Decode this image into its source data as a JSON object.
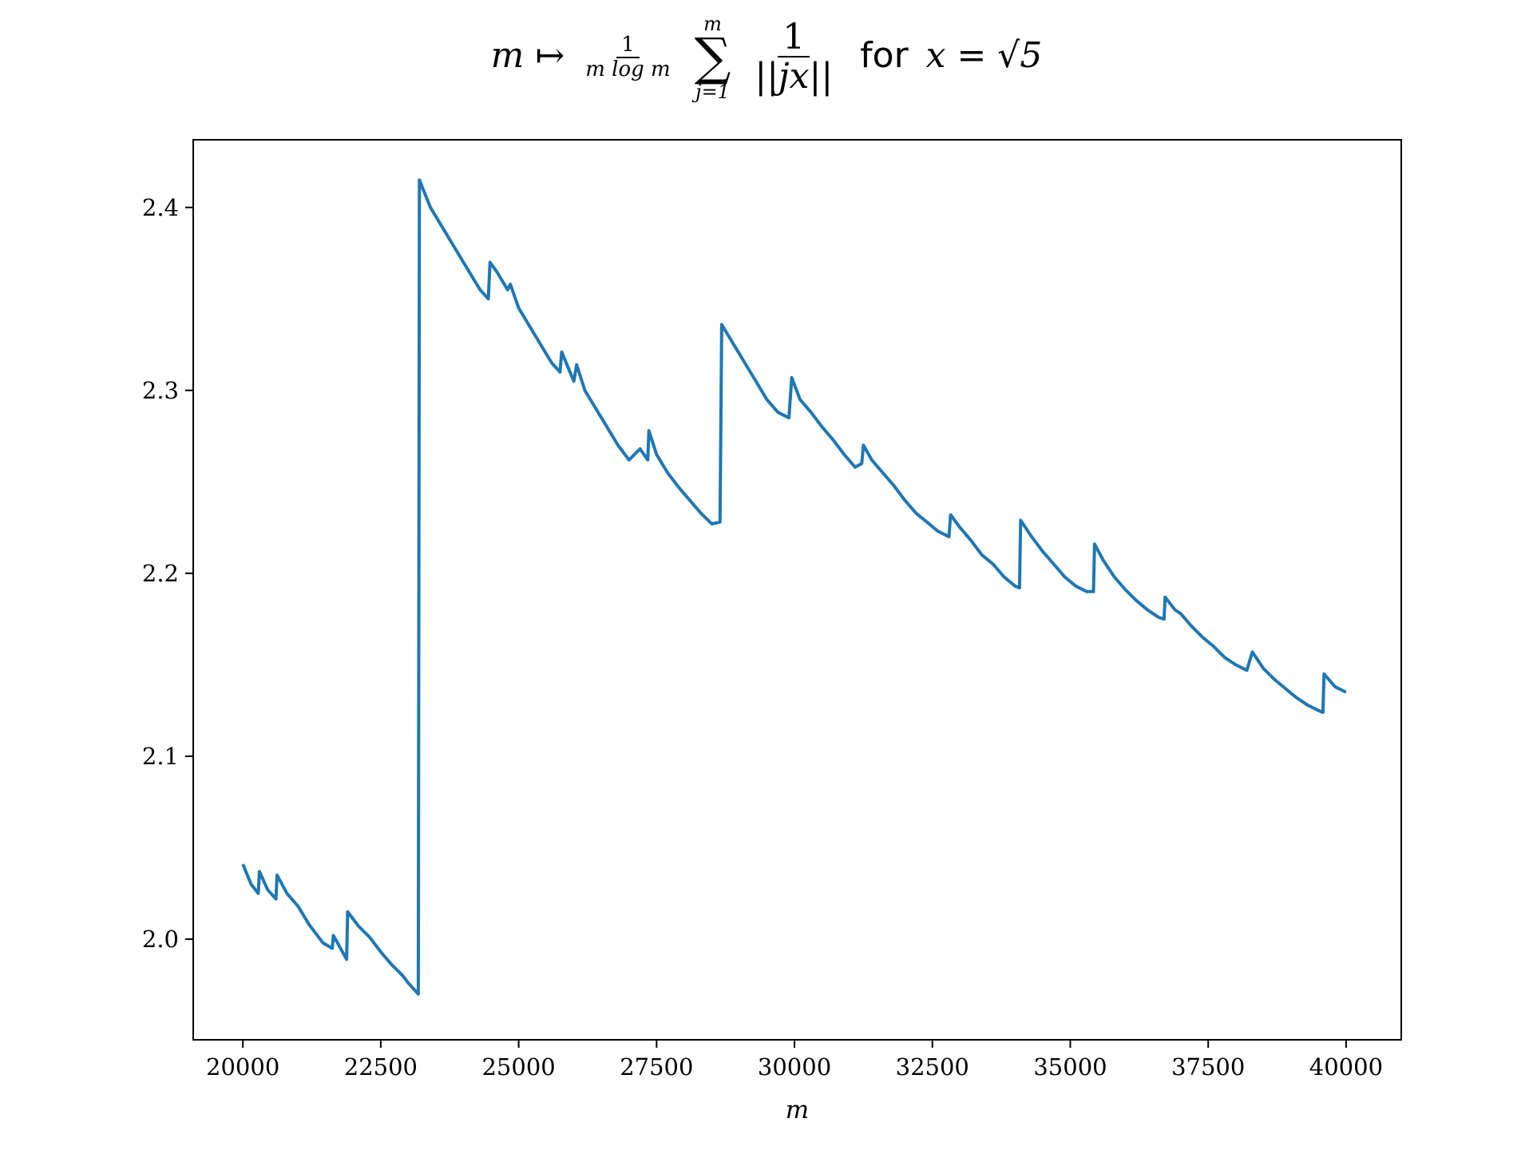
{
  "chart_data": {
    "type": "line",
    "title": {
      "map_var": "m",
      "map_arrow": "↦",
      "prefactor_num": "1",
      "prefactor_den": "m log m",
      "sum_upper": "m",
      "sum_symbol": "∑",
      "sum_lower": "j=1",
      "term_num": "1",
      "term_den": "||jx||",
      "for_word": "for",
      "condition": "x = √5"
    },
    "xlabel": "m",
    "ylabel": "",
    "xlim": [
      19100,
      41000
    ],
    "ylim": [
      1.945,
      2.437
    ],
    "x_ticks": [
      20000,
      22500,
      25000,
      27500,
      30000,
      32500,
      35000,
      37500,
      40000
    ],
    "x_tick_labels": [
      "20000",
      "22500",
      "25000",
      "27500",
      "30000",
      "32500",
      "35000",
      "37500",
      "40000"
    ],
    "y_ticks": [
      2.0,
      2.1,
      2.2,
      2.3,
      2.4
    ],
    "y_tick_labels": [
      "2.0",
      "2.1",
      "2.2",
      "2.3",
      "2.4"
    ],
    "grid": false,
    "legend": "none",
    "series": [
      {
        "color": "#1f77b4",
        "x": [
          20000,
          20150,
          20280,
          20300,
          20450,
          20600,
          20620,
          20800,
          21000,
          21200,
          21450,
          21620,
          21640,
          21880,
          21900,
          22100,
          22300,
          22500,
          22700,
          22900,
          23000,
          23180,
          23200,
          23400,
          23600,
          23800,
          24000,
          24200,
          24300,
          24450,
          24480,
          24600,
          24800,
          24850,
          25000,
          25200,
          25400,
          25600,
          25750,
          25780,
          26000,
          26050,
          26200,
          26400,
          26600,
          26800,
          27000,
          27200,
          27340,
          27360,
          27500,
          27700,
          27900,
          28100,
          28300,
          28500,
          28650,
          28680,
          28900,
          29100,
          29300,
          29500,
          29700,
          29900,
          29950,
          30100,
          30300,
          30500,
          30700,
          30900,
          31100,
          31220,
          31250,
          31400,
          31600,
          31800,
          32000,
          32200,
          32400,
          32600,
          32800,
          32830,
          33000,
          33200,
          33400,
          33600,
          33800,
          34000,
          34080,
          34100,
          34300,
          34500,
          34700,
          34900,
          35100,
          35300,
          35420,
          35440,
          35600,
          35800,
          36000,
          36200,
          36400,
          36600,
          36700,
          36720,
          36900,
          37000,
          37200,
          37400,
          37600,
          37800,
          38000,
          38200,
          38300,
          38500,
          38700,
          38900,
          39100,
          39300,
          39500,
          39580,
          39600,
          39800,
          40000
        ],
        "y": [
          2.041,
          2.03,
          2.025,
          2.037,
          2.027,
          2.022,
          2.035,
          2.025,
          2.018,
          2.008,
          1.998,
          1.995,
          2.002,
          1.989,
          2.015,
          2.007,
          2.001,
          1.993,
          1.986,
          1.98,
          1.976,
          1.97,
          2.415,
          2.4,
          2.39,
          2.38,
          2.37,
          2.36,
          2.355,
          2.35,
          2.37,
          2.365,
          2.355,
          2.358,
          2.345,
          2.335,
          2.325,
          2.315,
          2.31,
          2.321,
          2.305,
          2.314,
          2.3,
          2.29,
          2.28,
          2.27,
          2.262,
          2.268,
          2.262,
          2.278,
          2.265,
          2.255,
          2.247,
          2.24,
          2.233,
          2.227,
          2.228,
          2.336,
          2.325,
          2.315,
          2.305,
          2.295,
          2.288,
          2.285,
          2.307,
          2.295,
          2.288,
          2.28,
          2.273,
          2.265,
          2.258,
          2.26,
          2.27,
          2.262,
          2.255,
          2.248,
          2.24,
          2.233,
          2.228,
          2.223,
          2.22,
          2.232,
          2.225,
          2.218,
          2.21,
          2.205,
          2.198,
          2.193,
          2.192,
          2.229,
          2.22,
          2.212,
          2.205,
          2.198,
          2.193,
          2.19,
          2.19,
          2.216,
          2.207,
          2.198,
          2.191,
          2.185,
          2.18,
          2.176,
          2.175,
          2.187,
          2.18,
          2.178,
          2.171,
          2.165,
          2.16,
          2.154,
          2.15,
          2.147,
          2.157,
          2.148,
          2.142,
          2.137,
          2.132,
          2.128,
          2.125,
          2.124,
          2.145,
          2.138,
          2.135
        ]
      }
    ]
  }
}
